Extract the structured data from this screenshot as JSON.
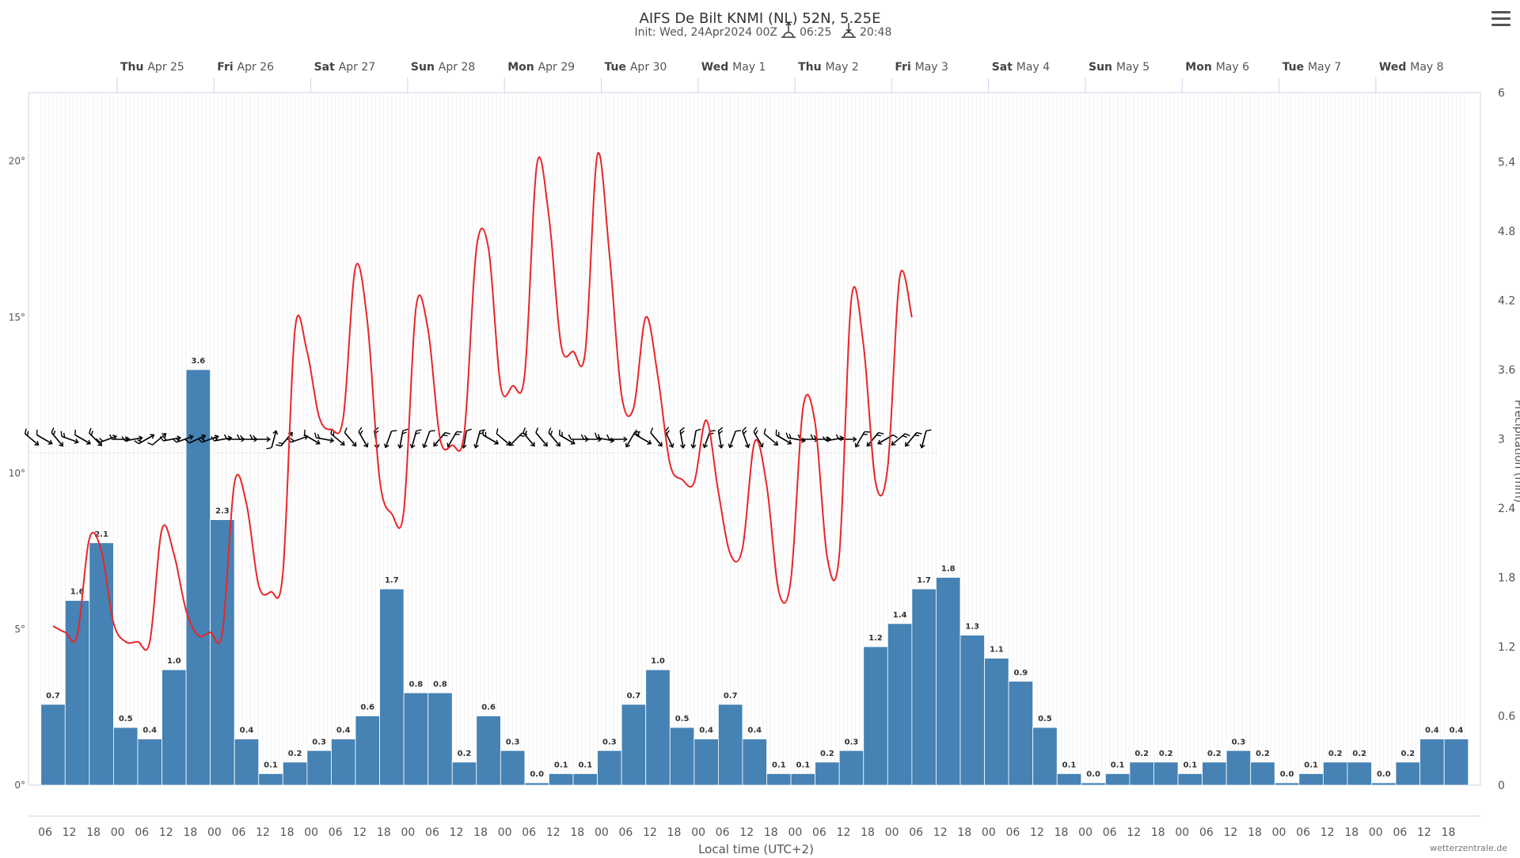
{
  "title": "AIFS De Bilt KNMI (NL) 52N, 5.25E",
  "subtitle": {
    "init": "Init: Wed, 24Apr2024 00Z",
    "sunrise": "06:25",
    "sunset": "20:48"
  },
  "credit": "wetterzentrale.de",
  "colors": {
    "temperature_line": "#e8262a",
    "bars": "#4682b4",
    "bar_edge": "#2f5f8a",
    "wind": "#000000",
    "grid": "#d8d8d8"
  },
  "icons": {
    "menu": "hamburger-menu-icon",
    "sunrise": "sunrise-icon",
    "sunset": "sunset-icon"
  },
  "chart_data": {
    "type": "bar",
    "xlabel": "Local time (UTC+2)",
    "ylabel_right": "Precipitation (mm)",
    "y_left_ticks": [
      "0°",
      "5°",
      "10°",
      "15°",
      "20°"
    ],
    "y_left_range": [
      0,
      22.2
    ],
    "y_right_ticks": [
      "0",
      "0.6",
      "1.2",
      "1.8",
      "2.4",
      "3",
      "3.6",
      "4.2",
      "4.8",
      "5.4",
      "6"
    ],
    "y_right_range": [
      0,
      6
    ],
    "day_labels": [
      {
        "weekday": "Thu",
        "date": "Apr 25"
      },
      {
        "weekday": "Fri",
        "date": "Apr 26"
      },
      {
        "weekday": "Sat",
        "date": "Apr 27"
      },
      {
        "weekday": "Sun",
        "date": "Apr 28"
      },
      {
        "weekday": "Mon",
        "date": "Apr 29"
      },
      {
        "weekday": "Tue",
        "date": "Apr 30"
      },
      {
        "weekday": "Wed",
        "date": "May 1"
      },
      {
        "weekday": "Thu",
        "date": "May 2"
      },
      {
        "weekday": "Fri",
        "date": "May 3"
      },
      {
        "weekday": "Sat",
        "date": "May 4"
      },
      {
        "weekday": "Sun",
        "date": "May 5"
      },
      {
        "weekday": "Mon",
        "date": "May 6"
      },
      {
        "weekday": "Tue",
        "date": "May 7"
      },
      {
        "weekday": "Wed",
        "date": "May 8"
      }
    ],
    "hour_labels": [
      "06",
      "12",
      "18",
      "00",
      "06",
      "12",
      "18",
      "00",
      "06",
      "12",
      "18",
      "00",
      "06",
      "12",
      "18",
      "00",
      "06",
      "12",
      "18",
      "00",
      "06",
      "12",
      "18",
      "00",
      "06",
      "12",
      "18",
      "00",
      "06",
      "12",
      "18",
      "00",
      "06",
      "12",
      "18",
      "00",
      "06",
      "12",
      "18",
      "00",
      "06",
      "12",
      "18",
      "00",
      "06",
      "12",
      "18",
      "00",
      "06",
      "12",
      "18",
      "00",
      "06",
      "12",
      "18",
      "00",
      "06",
      "12",
      "18"
    ],
    "precipitation": {
      "name": "Precipitation (mm)",
      "values": [
        0.7,
        1.6,
        2.1,
        0.5,
        0.4,
        1.0,
        3.6,
        2.3,
        0.4,
        0.1,
        0.2,
        0.3,
        0.4,
        0.6,
        1.7,
        0.8,
        0.8,
        0.2,
        0.6,
        0.3,
        0.0,
        0.1,
        0.1,
        0.3,
        0.7,
        1.0,
        0.5,
        0.4,
        0.7,
        0.4,
        0.1,
        0.1,
        0.2,
        0.3,
        1.2,
        1.4,
        1.7,
        1.8,
        1.3,
        1.1,
        0.9,
        0.5,
        0.1,
        0.0,
        0.1,
        0.2,
        0.2,
        0.1,
        0.2,
        0.3,
        0.2,
        0.0,
        0.1,
        0.2,
        0.2,
        0.0,
        0.2,
        0.4,
        0.4
      ],
      "labels": [
        "0.7",
        "1.6",
        "2.1",
        "0.5",
        "0.4",
        "1.0",
        "3.6",
        "2.3",
        "0.4",
        "0.1",
        "0.2",
        "0.3",
        "0.4",
        "0.6",
        "1.7",
        "0.8",
        "0.8",
        "0.2",
        "0.6",
        "0.3",
        "0.0",
        "0.1",
        "0.1",
        "0.3",
        "0.7",
        "1.0",
        "0.5",
        "0.4",
        "0.7",
        "0.4",
        "0.1",
        "0.1",
        "0.2",
        "0.3",
        "1.2",
        "1.4",
        "1.7",
        "1.8",
        "1.3",
        "1.1",
        "0.9",
        "0.5",
        "0.1",
        "0.0",
        "0.1",
        "0.2",
        "0.2",
        "0.1",
        "0.2",
        "0.3",
        "0.2",
        "0.0",
        "0.1",
        "0.2",
        "0.2",
        "0.0",
        "0.2",
        "0.4",
        "0.4"
      ]
    },
    "temperature": {
      "unit": "°C",
      "points": [
        [
          0.0,
          5.1
        ],
        [
          1.0,
          4.9
        ],
        [
          2.0,
          4.8
        ],
        [
          3.0,
          7.9
        ],
        [
          4.0,
          7.5
        ],
        [
          5.0,
          5.2
        ],
        [
          6.0,
          4.6
        ],
        [
          7.0,
          4.6
        ],
        [
          8.0,
          4.6
        ],
        [
          9.0,
          8.2
        ],
        [
          10.0,
          7.4
        ],
        [
          11.0,
          5.6
        ],
        [
          12.0,
          4.8
        ],
        [
          13.0,
          4.9
        ],
        [
          14.0,
          4.9
        ],
        [
          15.0,
          9.7
        ],
        [
          16.0,
          9.0
        ],
        [
          17.0,
          6.4
        ],
        [
          18.0,
          6.2
        ],
        [
          19.0,
          6.8
        ],
        [
          20.0,
          14.6
        ],
        [
          21.0,
          13.9
        ],
        [
          22.0,
          11.8
        ],
        [
          23.0,
          11.4
        ],
        [
          24.0,
          11.8
        ],
        [
          25.0,
          16.6
        ],
        [
          26.0,
          14.8
        ],
        [
          27.0,
          9.8
        ],
        [
          28.0,
          8.7
        ],
        [
          29.0,
          8.8
        ],
        [
          30.0,
          15.3
        ],
        [
          31.0,
          14.6
        ],
        [
          32.0,
          11.1
        ],
        [
          33.0,
          10.9
        ],
        [
          34.0,
          11.3
        ],
        [
          35.0,
          17.2
        ],
        [
          36.0,
          17.2
        ],
        [
          37.0,
          12.8
        ],
        [
          38.0,
          12.8
        ],
        [
          39.0,
          13.2
        ],
        [
          40.0,
          19.9
        ],
        [
          41.0,
          18.2
        ],
        [
          42.0,
          14.1
        ],
        [
          43.0,
          13.9
        ],
        [
          44.0,
          13.9
        ],
        [
          45.0,
          20.2
        ],
        [
          46.0,
          17.0
        ],
        [
          47.0,
          12.5
        ],
        [
          48.0,
          12.1
        ],
        [
          49.0,
          15.0
        ],
        [
          50.0,
          13.1
        ],
        [
          51.0,
          10.3
        ],
        [
          52.0,
          9.8
        ],
        [
          53.0,
          9.7
        ],
        [
          54.0,
          11.7
        ],
        [
          55.0,
          9.4
        ],
        [
          56.0,
          7.4
        ],
        [
          57.0,
          7.6
        ],
        [
          58.0,
          11.0
        ],
        [
          59.0,
          9.6
        ],
        [
          60.0,
          6.2
        ],
        [
          61.0,
          6.6
        ],
        [
          62.0,
          12.1
        ],
        [
          63.0,
          11.6
        ],
        [
          64.0,
          7.3
        ],
        [
          65.0,
          7.4
        ],
        [
          66.0,
          15.6
        ],
        [
          67.0,
          14.1
        ],
        [
          68.0,
          9.7
        ],
        [
          69.0,
          10.2
        ],
        [
          70.0,
          16.3
        ],
        [
          71.0,
          15.0
        ]
      ]
    },
    "wind_barbs": {
      "count": 71,
      "directions_deg": [
        310,
        300,
        320,
        290,
        300,
        315,
        250,
        270,
        260,
        240,
        230,
        260,
        250,
        245,
        250,
        260,
        270,
        270,
        270,
        195,
        220,
        250,
        300,
        280,
        310,
        320,
        330,
        350,
        20,
        10,
        15,
        20,
        40,
        30,
        10,
        15,
        300,
        310,
        45,
        320,
        320,
        320,
        300,
        270,
        270,
        280,
        270,
        30,
        300,
        320,
        335,
        350,
        10,
        20,
        350,
        20,
        340,
        330,
        310,
        300,
        280,
        270,
        270,
        260,
        270,
        30,
        40,
        60,
        50,
        40,
        15
      ]
    }
  }
}
